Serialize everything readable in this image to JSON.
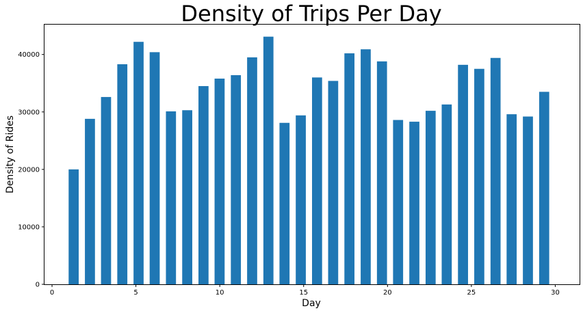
{
  "chart_data": {
    "type": "bar",
    "title": "Density of Trips Per Day",
    "xlabel": "Day",
    "ylabel": "Density of Rides",
    "xlim": [
      -0.45,
      31.45
    ],
    "ylim": [
      0,
      45200
    ],
    "xticks": [
      0,
      5,
      10,
      15,
      20,
      25,
      30
    ],
    "yticks": [
      0,
      10000,
      20000,
      30000,
      40000
    ],
    "bar_color": "#1f77b4",
    "grid": false,
    "legend": "none",
    "bars": [
      {
        "x": 1.29,
        "value": 20000
      },
      {
        "x": 2.26,
        "value": 28800
      },
      {
        "x": 3.22,
        "value": 32600
      },
      {
        "x": 4.19,
        "value": 38300
      },
      {
        "x": 5.16,
        "value": 42200
      },
      {
        "x": 6.12,
        "value": 40400
      },
      {
        "x": 7.09,
        "value": 30100
      },
      {
        "x": 8.06,
        "value": 30300
      },
      {
        "x": 9.03,
        "value": 34500
      },
      {
        "x": 9.99,
        "value": 35800
      },
      {
        "x": 10.96,
        "value": 36400
      },
      {
        "x": 11.93,
        "value": 39500
      },
      {
        "x": 12.9,
        "value": 43100
      },
      {
        "x": 13.86,
        "value": 28100
      },
      {
        "x": 14.83,
        "value": 29400
      },
      {
        "x": 15.8,
        "value": 36000
      },
      {
        "x": 16.76,
        "value": 35400
      },
      {
        "x": 17.73,
        "value": 40200
      },
      {
        "x": 18.7,
        "value": 40900
      },
      {
        "x": 19.67,
        "value": 38800
      },
      {
        "x": 20.63,
        "value": 28600
      },
      {
        "x": 21.6,
        "value": 28300
      },
      {
        "x": 22.57,
        "value": 30200
      },
      {
        "x": 23.53,
        "value": 31300
      },
      {
        "x": 24.5,
        "value": 38200
      },
      {
        "x": 25.47,
        "value": 37500
      },
      {
        "x": 26.44,
        "value": 39400
      },
      {
        "x": 27.4,
        "value": 29600
      },
      {
        "x": 28.37,
        "value": 29200
      },
      {
        "x": 29.34,
        "value": 33500
      }
    ]
  }
}
